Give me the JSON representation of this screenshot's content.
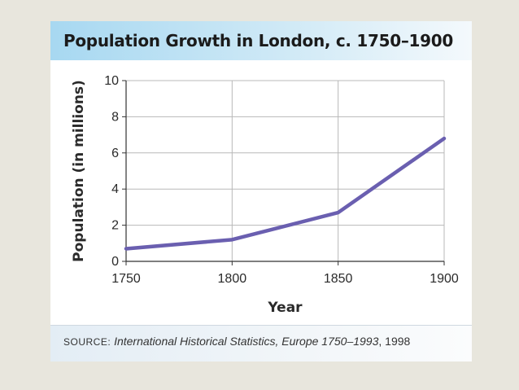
{
  "chart_data": {
    "type": "line",
    "title": "Population Growth in London, c. 1750–1900",
    "xlabel": "Year",
    "ylabel": "Population (in millions)",
    "x": [
      1750,
      1800,
      1850,
      1900
    ],
    "series": [
      {
        "values": [
          0.7,
          1.2,
          2.7,
          6.8
        ]
      }
    ],
    "xlim": [
      1750,
      1900
    ],
    "ylim": [
      0,
      10
    ],
    "xticks": [
      "1750",
      "1800",
      "1850",
      "1900"
    ],
    "yticks": [
      "0",
      "2",
      "4",
      "6",
      "8",
      "10"
    ],
    "grid": true,
    "line_color": "#6a5fb0"
  },
  "source": {
    "label": "SOURCE:",
    "work": "International Historical Statistics, Europe 1750–1993",
    "year": ", 1998"
  }
}
